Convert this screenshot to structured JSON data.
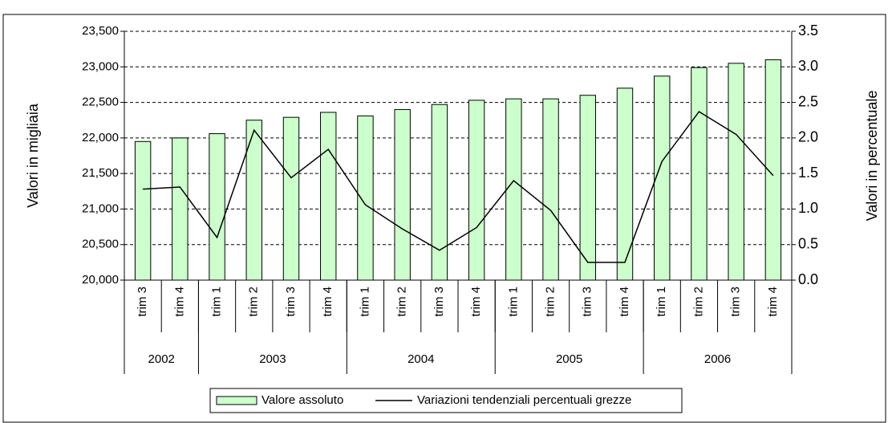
{
  "chart_data": {
    "type": "bar-line",
    "categories": [
      "trim 3",
      "trim 4",
      "trim 1",
      "trim 2",
      "trim 3",
      "trim 4",
      "trim 1",
      "trim 2",
      "trim 3",
      "trim 4",
      "trim 1",
      "trim 2",
      "trim 3",
      "trim 4",
      "trim 1",
      "trim 2",
      "trim 3",
      "trim 4"
    ],
    "year_groups": [
      {
        "label": "2002",
        "count": 2
      },
      {
        "label": "2003",
        "count": 4
      },
      {
        "label": "2004",
        "count": 4
      },
      {
        "label": "2005",
        "count": 4
      },
      {
        "label": "2006",
        "count": 4
      }
    ],
    "series": [
      {
        "name": "Valore assoluto",
        "kind": "bar",
        "color": "#ccffcc",
        "values": [
          21950,
          22000,
          22060,
          22250,
          22290,
          22360,
          22310,
          22400,
          22470,
          22530,
          22550,
          22550,
          22600,
          22700,
          22870,
          22990,
          23050,
          23100
        ]
      },
      {
        "name": "Variazioni tendenziali percentuali grezze",
        "kind": "line",
        "axis": "y2",
        "color": "#000000",
        "values": [
          1.28,
          1.31,
          0.6,
          2.11,
          1.44,
          1.84,
          1.06,
          0.72,
          0.42,
          0.74,
          1.4,
          0.98,
          0.25,
          0.25,
          1.67,
          2.37,
          2.05,
          1.47
        ]
      }
    ],
    "ylabel": "Valori in migliaia",
    "y2label": "Valori in percentuale",
    "ylim": [
      20000,
      23500
    ],
    "yticks": [
      {
        "value": 20000,
        "label": "20,000"
      },
      {
        "value": 20500,
        "label": "20,500"
      },
      {
        "value": 21000,
        "label": "21,000"
      },
      {
        "value": 21500,
        "label": "21,500"
      },
      {
        "value": 22000,
        "label": "22,000"
      },
      {
        "value": 22500,
        "label": "22,500"
      },
      {
        "value": 23000,
        "label": "23,000"
      },
      {
        "value": 23500,
        "label": "23,500"
      }
    ],
    "y2lim": [
      0,
      3.5
    ],
    "y2ticks": [
      {
        "value": 0,
        "label": "0.0"
      },
      {
        "value": 0.5,
        "label": "0.5"
      },
      {
        "value": 1,
        "label": "1.0"
      },
      {
        "value": 1.5,
        "label": "1.5"
      },
      {
        "value": 2,
        "label": "2.0"
      },
      {
        "value": 2.5,
        "label": "2.5"
      },
      {
        "value": 3,
        "label": "3.0"
      },
      {
        "value": 3.5,
        "label": "3.5"
      }
    ],
    "grid": true
  }
}
